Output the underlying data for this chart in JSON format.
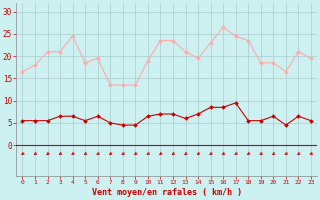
{
  "hours": [
    0,
    1,
    2,
    3,
    4,
    5,
    6,
    7,
    8,
    9,
    10,
    11,
    12,
    13,
    14,
    15,
    16,
    17,
    18,
    19,
    20,
    21,
    22,
    23
  ],
  "rafales": [
    16.5,
    18,
    21,
    21,
    24.5,
    18.5,
    19.5,
    13.5,
    13.5,
    13.5,
    19,
    23.5,
    23.5,
    21,
    19.5,
    23,
    26.5,
    24.5,
    23.5,
    18.5,
    18.5,
    16.5,
    21,
    19.5
  ],
  "moyen": [
    5.5,
    5.5,
    5.5,
    6.5,
    6.5,
    5.5,
    6.5,
    5,
    4.5,
    4.5,
    6.5,
    7,
    7,
    6,
    7,
    8.5,
    8.5,
    9.5,
    5.5,
    5.5,
    6.5,
    4.5,
    6.5,
    5.5
  ],
  "xlabel": "Vent moyen/en rafales ( km/h )",
  "ylim": [
    -7,
    32
  ],
  "yticks": [
    0,
    5,
    10,
    15,
    20,
    25,
    30
  ],
  "xlim": [
    -0.5,
    23.5
  ],
  "bg_color": "#cdf0f0",
  "grid_color": "#aacccc",
  "line_color_rafales": "#ffaaaa",
  "line_color_moyen": "#cc0000",
  "arrow_color": "#cc0000",
  "hline_color": "#cc0000",
  "xlabel_color": "#cc0000",
  "tick_color": "#cc0000",
  "spine_color": "#888888"
}
